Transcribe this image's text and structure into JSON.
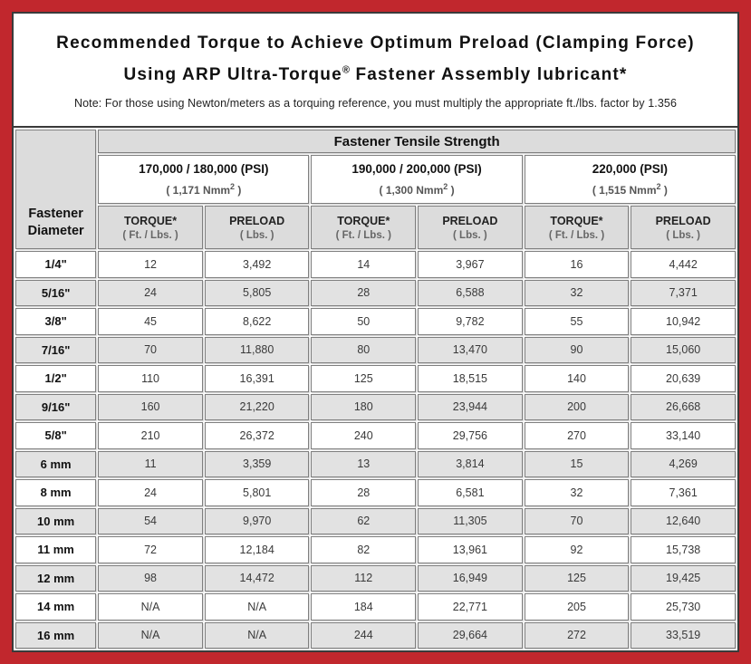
{
  "title": {
    "line1": "Recommended Torque to Achieve Optimum Preload (Clamping Force)",
    "line2_pre": "Using ARP Ultra-Torque",
    "reg_mark": "®",
    "line2_post": " Fastener Assembly lubricant*",
    "note": "Note: For those using Newton/meters as a torquing reference, you must multiply the appropriate ft./lbs. factor by 1.356"
  },
  "table": {
    "corner": {
      "line1": "Fastener",
      "line2": "Diameter"
    },
    "tensile_header": "Fastener Tensile Strength",
    "groups": [
      {
        "psi": "170,000 / 180,000 (PSI)",
        "nmm_pre": "( 1,171 Nmm",
        "nmm_sup": "2",
        "nmm_post": " )"
      },
      {
        "psi": "190,000 / 200,000 (PSI)",
        "nmm_pre": "( 1,300 Nmm",
        "nmm_sup": "2",
        "nmm_post": " )"
      },
      {
        "psi": "220,000 (PSI)",
        "nmm_pre": "( 1,515 Nmm",
        "nmm_sup": "2",
        "nmm_post": " )"
      }
    ],
    "sub_headers": {
      "torque": "TORQUE*",
      "torque_unit": "( Ft. / Lbs. )",
      "preload": "PRELOAD",
      "preload_unit": "( Lbs. )"
    },
    "rows": [
      {
        "d": "1/4\"",
        "v": [
          "12",
          "3,492",
          "14",
          "3,967",
          "16",
          "4,442"
        ]
      },
      {
        "d": "5/16\"",
        "v": [
          "24",
          "5,805",
          "28",
          "6,588",
          "32",
          "7,371"
        ]
      },
      {
        "d": "3/8\"",
        "v": [
          "45",
          "8,622",
          "50",
          "9,782",
          "55",
          "10,942"
        ]
      },
      {
        "d": "7/16\"",
        "v": [
          "70",
          "11,880",
          "80",
          "13,470",
          "90",
          "15,060"
        ]
      },
      {
        "d": "1/2\"",
        "v": [
          "110",
          "16,391",
          "125",
          "18,515",
          "140",
          "20,639"
        ]
      },
      {
        "d": "9/16\"",
        "v": [
          "160",
          "21,220",
          "180",
          "23,944",
          "200",
          "26,668"
        ]
      },
      {
        "d": "5/8\"",
        "v": [
          "210",
          "26,372",
          "240",
          "29,756",
          "270",
          "33,140"
        ]
      },
      {
        "d": "6 mm",
        "v": [
          "11",
          "3,359",
          "13",
          "3,814",
          "15",
          "4,269"
        ]
      },
      {
        "d": "8 mm",
        "v": [
          "24",
          "5,801",
          "28",
          "6,581",
          "32",
          "7,361"
        ]
      },
      {
        "d": "10 mm",
        "v": [
          "54",
          "9,970",
          "62",
          "11,305",
          "70",
          "12,640"
        ]
      },
      {
        "d": "11 mm",
        "v": [
          "72",
          "12,184",
          "82",
          "13,961",
          "92",
          "15,738"
        ]
      },
      {
        "d": "12 mm",
        "v": [
          "98",
          "14,472",
          "112",
          "16,949",
          "125",
          "19,425"
        ]
      },
      {
        "d": "14 mm",
        "v": [
          "N/A",
          "N/A",
          "184",
          "22,771",
          "205",
          "25,730"
        ]
      },
      {
        "d": "16 mm",
        "v": [
          "N/A",
          "N/A",
          "244",
          "29,664",
          "272",
          "33,519"
        ]
      }
    ]
  },
  "colors": {
    "frame_red": "#C1272D",
    "frame_inner_border": "#3A3A3A",
    "header_gray": "#DCDCDC",
    "row_alt_gray": "#E2E2E2",
    "cell_border": "#7F7F7F"
  }
}
